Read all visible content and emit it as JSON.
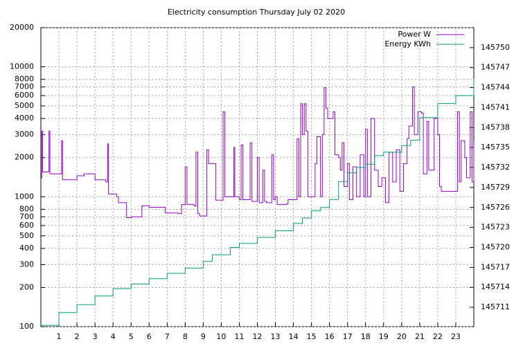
{
  "chart_data": {
    "type": "line",
    "title": "Electricity consumption Thursday July 02 2020",
    "xlim": [
      0,
      24
    ],
    "xticks": [
      1,
      2,
      3,
      4,
      5,
      6,
      7,
      8,
      9,
      10,
      11,
      12,
      13,
      14,
      15,
      16,
      17,
      18,
      19,
      20,
      21,
      22,
      23
    ],
    "ylim": [
      100,
      20000
    ],
    "log_y": true,
    "yticks": [
      100,
      200,
      300,
      400,
      500,
      600,
      700,
      800,
      1000,
      2000,
      3000,
      4000,
      5000,
      6000,
      7000,
      8000,
      10000,
      20000
    ],
    "y2lim": [
      145708.1,
      145753
    ],
    "y2ticks": [
      145711,
      145714,
      145717,
      145720,
      145723,
      145726,
      145729,
      145732,
      145735,
      145738,
      145741,
      145744,
      145747,
      145750
    ],
    "grid": true,
    "steps": true,
    "legend": "top-right",
    "series": [
      {
        "name": "Power W",
        "color": "#9400d3",
        "x": [
          0,
          0.05,
          0.1,
          0.4,
          0.45,
          0.5,
          1.1,
          1.15,
          1.2,
          1.9,
          2.0,
          2.3,
          2.4,
          2.9,
          3.0,
          3.6,
          3.7,
          3.75,
          4.2,
          4.3,
          4.7,
          4.75,
          5.0,
          5.5,
          5.6,
          6.0,
          6.8,
          6.9,
          7.5,
          7.6,
          7.8,
          8.0,
          8.1,
          8.5,
          8.6,
          8.7,
          8.8,
          9.1,
          9.2,
          9.3,
          9.6,
          9.7,
          10.0,
          10.1,
          10.2,
          10.6,
          10.7,
          10.75,
          11.0,
          11.1,
          11.2,
          11.6,
          11.7,
          12.0,
          12.1,
          12.3,
          12.4,
          12.5,
          12.8,
          12.9,
          13.0,
          13.1,
          13.6,
          13.7,
          14.1,
          14.2,
          14.3,
          14.4,
          14.5,
          14.6,
          14.7,
          14.8,
          15.0,
          15.2,
          15.3,
          15.5,
          15.6,
          15.7,
          15.8,
          15.9,
          16.1,
          16.2,
          16.3,
          16.5,
          16.6,
          16.7,
          16.8,
          17.0,
          17.1,
          17.3,
          17.5,
          17.7,
          17.9,
          18.0,
          18.1,
          18.3,
          18.5,
          18.7,
          18.9,
          19.1,
          19.3,
          19.5,
          19.7,
          19.9,
          20.1,
          20.3,
          20.4,
          20.6,
          20.7,
          20.9,
          21.1,
          21.2,
          21.4,
          21.5,
          21.8,
          22.0,
          22.1,
          22.2,
          23.0,
          23.1,
          23.2,
          23.3,
          23.5,
          23.6,
          23.8,
          23.9,
          24.0
        ],
        "values": [
          1400,
          3200,
          1550,
          1550,
          3200,
          1500,
          1500,
          2700,
          1350,
          1350,
          1450,
          1450,
          1500,
          1500,
          1350,
          1300,
          2550,
          1050,
          1000,
          900,
          900,
          690,
          700,
          700,
          850,
          830,
          830,
          750,
          750,
          740,
          870,
          1700,
          870,
          850,
          2200,
          740,
          710,
          710,
          2300,
          1800,
          1800,
          940,
          940,
          4500,
          1000,
          1000,
          2400,
          1000,
          950,
          2500,
          950,
          2600,
          920,
          2000,
          900,
          1600,
          920,
          900,
          2100,
          950,
          1000,
          870,
          880,
          950,
          950,
          2800,
          1000,
          5200,
          3000,
          5200,
          3200,
          1000,
          1000,
          1800,
          2900,
          1000,
          3000,
          6900,
          4800,
          4000,
          4000,
          4500,
          2100,
          2000,
          1600,
          2600,
          1200,
          1800,
          950,
          1700,
          1000,
          2100,
          1000,
          3300,
          1000,
          4000,
          1600,
          1200,
          1400,
          900,
          2200,
          1300,
          2300,
          1100,
          1800,
          2800,
          3500,
          7000,
          3000,
          4500,
          4400,
          1500,
          3800,
          1600,
          4000,
          3000,
          1200,
          1100,
          1100,
          4500,
          1300,
          2700,
          2000,
          1400,
          4500,
          1300,
          2600
        ]
      },
      {
        "name": "Energy KWh",
        "color": "#009e73",
        "axis": "y2",
        "x": [
          0,
          1,
          2,
          3,
          4,
          5,
          6,
          7,
          8,
          9,
          9.5,
          10.5,
          11,
          12,
          13,
          14,
          14.5,
          15,
          15.5,
          16,
          16.5,
          17,
          17.5,
          18,
          18.5,
          19,
          20,
          20.5,
          21,
          22,
          23,
          24
        ],
        "values": [
          145708.3,
          145710.2,
          145711.4,
          145712.7,
          145713.8,
          145714.5,
          145715.3,
          145716.1,
          145716.9,
          145717.9,
          145718.9,
          145720.0,
          145720.6,
          145721.5,
          145722.5,
          145723.6,
          145724.4,
          145725.5,
          145726.0,
          145727.2,
          145729.9,
          145731.2,
          145732.0,
          145732.5,
          145733.8,
          145734.3,
          145735.3,
          145736.1,
          145739.5,
          145741.6,
          145742.8,
          145745.3
        ]
      }
    ]
  }
}
